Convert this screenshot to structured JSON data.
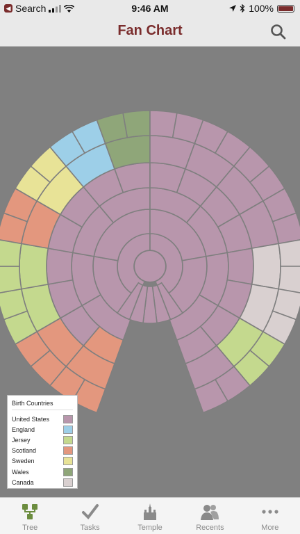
{
  "status_bar": {
    "back_label": "Search",
    "time": "9:46 AM",
    "battery": "100%"
  },
  "header": {
    "title": "Fan Chart"
  },
  "colors": {
    "United States": "#b896ac",
    "England": "#9dcfe8",
    "Jersey": "#c4d98e",
    "Scotland": "#e3977e",
    "Sweden": "#e8e397",
    "Wales": "#8fa679",
    "Canada": "#d9d0d0",
    "Unknown": "#b3a5ad"
  },
  "chart_data": {
    "type": "fan",
    "generations": [
      {
        "generation": 2,
        "countries": [
          "United States",
          "United States"
        ]
      },
      {
        "generation": 3,
        "countries": [
          "United States",
          "United States",
          "United States",
          "United States"
        ]
      },
      {
        "generation": 4,
        "countries": [
          "United States",
          "United States",
          "United States",
          "United States",
          "United States",
          "United States",
          "United States",
          "United States"
        ]
      },
      {
        "generation": 5,
        "countries": [
          "Scotland",
          "United States",
          "United States",
          "United States",
          "United States",
          "United States",
          "United States",
          "United States",
          "United States",
          "United States",
          "United States",
          "United States",
          "United States",
          "United States",
          "United States",
          "United States"
        ]
      },
      {
        "generation": 6,
        "countries": [
          "Scotland",
          "Scotland",
          "Jersey",
          "Jersey",
          "Scotland",
          "Sweden",
          "England",
          "Wales",
          "United States",
          "United States",
          "United States",
          "United States",
          "Canada",
          "Canada",
          "Jersey",
          "United States"
        ]
      },
      {
        "generation": 7,
        "countries": [
          "Scotland",
          "Scotland",
          "Scotland",
          "Scotland",
          "Jersey",
          "Jersey",
          "Jersey",
          "Jersey",
          "Scotland",
          "Scotland",
          "Sweden",
          "Sweden",
          "England",
          "England",
          "Wales",
          "Wales",
          "United States",
          "United States",
          "United States",
          "United States",
          "United States",
          "United States",
          "United States",
          "United States",
          "Canada",
          "Canada",
          "Canada",
          "Canada",
          "Jersey",
          "Jersey",
          "United States",
          "United States"
        ]
      }
    ],
    "descendants": {
      "count": 5,
      "country": "United States"
    }
  },
  "legend": {
    "title": "Birth Countries",
    "items": [
      {
        "label": "United States"
      },
      {
        "label": "England"
      },
      {
        "label": "Jersey"
      },
      {
        "label": "Scotland"
      },
      {
        "label": "Sweden"
      },
      {
        "label": "Wales"
      },
      {
        "label": "Canada"
      }
    ]
  },
  "tabs": [
    {
      "label": "Tree",
      "icon": "tree-icon",
      "active": true
    },
    {
      "label": "Tasks",
      "icon": "checkmark-icon",
      "active": false
    },
    {
      "label": "Temple",
      "icon": "temple-icon",
      "active": false
    },
    {
      "label": "Recents",
      "icon": "people-icon",
      "active": false
    },
    {
      "label": "More",
      "icon": "more-dots-icon",
      "active": false
    }
  ]
}
